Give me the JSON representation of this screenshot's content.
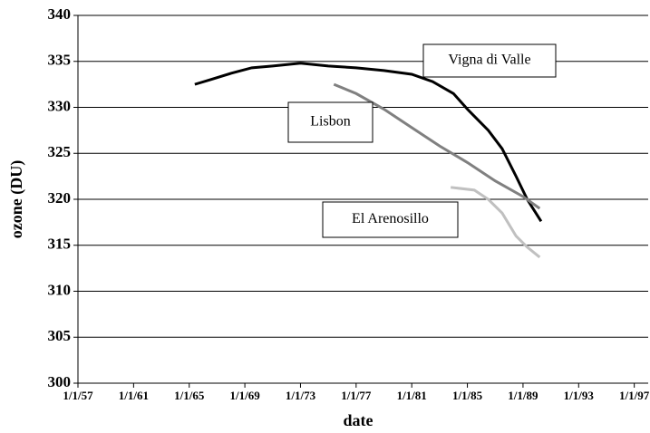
{
  "chart_data": {
    "type": "line",
    "x_label": "date",
    "y_label": "ozone (DU)",
    "xlim": [
      1957,
      1998
    ],
    "ylim": [
      300,
      340
    ],
    "xticks": [
      {
        "value": 1957,
        "label": "1/1/57"
      },
      {
        "value": 1961,
        "label": "1/1/61"
      },
      {
        "value": 1965,
        "label": "1/1/65"
      },
      {
        "value": 1969,
        "label": "1/1/69"
      },
      {
        "value": 1973,
        "label": "1/1/73"
      },
      {
        "value": 1977,
        "label": "1/1/77"
      },
      {
        "value": 1981,
        "label": "1/1/81"
      },
      {
        "value": 1985,
        "label": "1/1/85"
      },
      {
        "value": 1989,
        "label": "1/1/89"
      },
      {
        "value": 1993,
        "label": "1/1/93"
      },
      {
        "value": 1997,
        "label": "1/1/97"
      }
    ],
    "yticks": [
      300,
      305,
      310,
      315,
      320,
      325,
      330,
      335,
      340
    ],
    "grid": true,
    "annotations": [
      "Vigna di Valle",
      "Lisbon",
      "El Arenosillo"
    ],
    "series": [
      {
        "name": "Vigna di Valle",
        "color": "#000000",
        "x": [
          1965.4,
          1966.5,
          1968,
          1969.5,
          1971,
          1973,
          1975,
          1977,
          1979,
          1981,
          1982.5,
          1984,
          1985,
          1986.5,
          1987.5,
          1988.5,
          1989.3,
          1990.3
        ],
        "values": [
          332.5,
          333,
          333.7,
          334.3,
          334.5,
          334.8,
          334.5,
          334.3,
          334,
          333.6,
          332.8,
          331.5,
          329.8,
          327.5,
          325.5,
          322.5,
          320,
          317.6
        ]
      },
      {
        "name": "Lisbon",
        "color": "#808080",
        "x": [
          1975.4,
          1977,
          1979,
          1981,
          1983,
          1985,
          1987,
          1989,
          1990.2
        ],
        "values": [
          332.5,
          331.5,
          329.8,
          327.8,
          325.8,
          324,
          322,
          320.3,
          319
        ]
      },
      {
        "name": "El Arenosillo",
        "color": "#c0c0c0",
        "x": [
          1983.8,
          1985.5,
          1986.5,
          1987.5,
          1988.5,
          1989.3,
          1990.2
        ],
        "values": [
          321.3,
          321,
          320,
          318.5,
          316,
          314.8,
          313.7
        ]
      }
    ]
  }
}
